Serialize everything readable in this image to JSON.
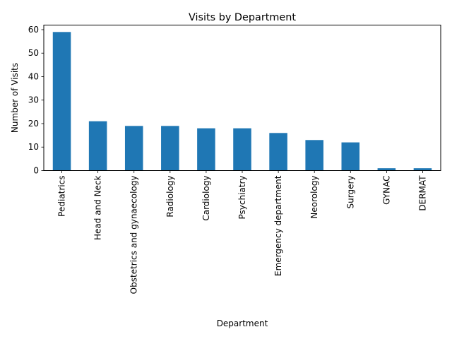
{
  "chart_data": {
    "type": "bar",
    "title": "Visits by Department",
    "xlabel": "Department",
    "ylabel": "Number of Visits",
    "categories": [
      "Pediatrics",
      "Head and Neck",
      "Obstetrics and gynaecology",
      "Radiology",
      "Cardiology",
      "Psychiatry",
      "Emergency department",
      "Neorology",
      "Surgery",
      "GYNAC",
      "DERMAT"
    ],
    "values": [
      59,
      21,
      19,
      19,
      18,
      18,
      16,
      13,
      12,
      1,
      1
    ],
    "yticks": [
      0,
      10,
      20,
      30,
      40,
      50,
      60
    ],
    "ylim": [
      0,
      61.95
    ],
    "grid": false,
    "legend": false,
    "bar_color": "#1f77b4"
  }
}
